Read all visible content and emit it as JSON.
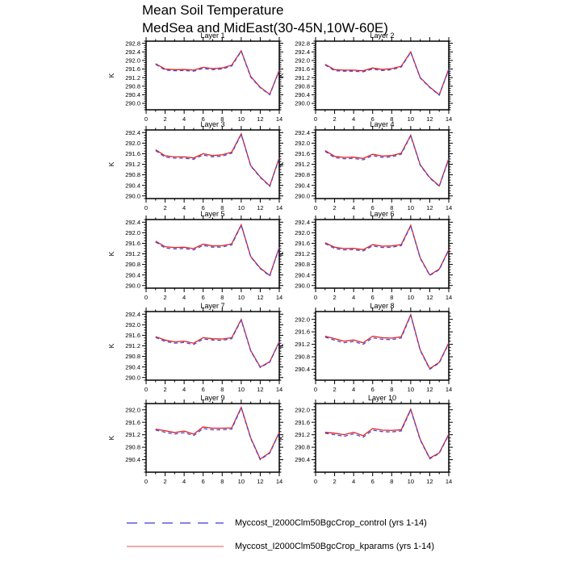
{
  "title": {
    "line1": "Mean Soil Temperature",
    "line2": "MedSea and MidEast(30-45N,10W-60E)"
  },
  "legend": {
    "entries": [
      {
        "label": "Myccost_I2000Clm50BgcCrop_control (yrs 1-14)",
        "style": "dashed",
        "color": "#5b5bdb"
      },
      {
        "label": "Myccost_I2000Clm50BgcCrop_kparams (yrs 1-14)",
        "style": "solid",
        "color": "#e87a72"
      }
    ]
  },
  "chart_data": {
    "type": "line",
    "x": [
      1,
      2,
      3,
      4,
      5,
      6,
      7,
      8,
      9,
      10,
      11,
      12,
      13,
      14
    ],
    "xlim": [
      0,
      14
    ],
    "xticks_major": [
      0,
      2,
      4,
      6,
      8,
      10,
      12,
      14
    ],
    "xticks_minor": [
      1,
      3,
      5,
      7,
      9,
      11,
      13
    ],
    "ylabel": "K",
    "grid": false,
    "legend_position": "bottom",
    "series_names": [
      "Myccost_I2000Clm50BgcCrop_control (yrs 1-14)",
      "Myccost_I2000Clm50BgcCrop_kparams (yrs 1-14)"
    ],
    "control_color": "#4a4ad6",
    "kparams_color": "#e62020",
    "panels": [
      {
        "title": "Layer 1",
        "ylim": [
          289.7,
          292.9
        ],
        "yticks": [
          290.0,
          290.4,
          290.8,
          291.2,
          291.6,
          292.0,
          292.4,
          292.8
        ],
        "control": [
          291.82,
          291.55,
          291.52,
          291.53,
          291.5,
          291.63,
          291.57,
          291.6,
          291.74,
          292.43,
          291.22,
          290.73,
          290.4,
          291.53
        ],
        "kparams": [
          291.85,
          291.6,
          291.57,
          291.58,
          291.55,
          291.68,
          291.62,
          291.65,
          291.78,
          292.45,
          291.25,
          290.75,
          290.42,
          291.55
        ]
      },
      {
        "title": "Layer 2",
        "ylim": [
          289.7,
          292.9
        ],
        "yticks": [
          290.0,
          290.4,
          290.8,
          291.2,
          291.6,
          292.0,
          292.4,
          292.8
        ],
        "control": [
          291.79,
          291.52,
          291.5,
          291.5,
          291.47,
          291.6,
          291.53,
          291.57,
          291.69,
          292.38,
          291.18,
          290.74,
          290.38,
          291.58
        ],
        "kparams": [
          291.82,
          291.57,
          291.55,
          291.55,
          291.52,
          291.65,
          291.58,
          291.62,
          291.73,
          292.4,
          291.2,
          290.76,
          290.4,
          291.6
        ]
      },
      {
        "title": "Layer 3",
        "ylim": [
          289.9,
          292.5
        ],
        "yticks": [
          290.0,
          290.4,
          290.8,
          291.2,
          291.6,
          292.0,
          292.4
        ],
        "control": [
          291.72,
          291.47,
          291.43,
          291.43,
          291.39,
          291.55,
          291.48,
          291.51,
          291.62,
          292.33,
          291.13,
          290.7,
          290.36,
          291.43
        ],
        "kparams": [
          291.75,
          291.52,
          291.48,
          291.48,
          291.44,
          291.6,
          291.53,
          291.56,
          291.66,
          292.35,
          291.15,
          290.72,
          290.38,
          291.45
        ]
      },
      {
        "title": "Layer 4",
        "ylim": [
          289.9,
          292.5
        ],
        "yticks": [
          290.0,
          290.4,
          290.8,
          291.2,
          291.6,
          292.0,
          292.4
        ],
        "control": [
          291.69,
          291.45,
          291.41,
          291.42,
          291.37,
          291.53,
          291.46,
          291.48,
          291.58,
          292.28,
          291.16,
          290.68,
          290.36,
          291.4
        ],
        "kparams": [
          291.72,
          291.5,
          291.46,
          291.47,
          291.42,
          291.58,
          291.51,
          291.53,
          291.62,
          292.3,
          291.18,
          290.7,
          290.38,
          291.42
        ]
      },
      {
        "title": "Layer 5",
        "ylim": [
          289.9,
          292.5
        ],
        "yticks": [
          290.0,
          290.4,
          290.8,
          291.2,
          291.6,
          292.0,
          292.4
        ],
        "control": [
          291.65,
          291.42,
          291.39,
          291.4,
          291.35,
          291.52,
          291.45,
          291.46,
          291.54,
          292.28,
          291.08,
          290.64,
          290.36,
          291.43
        ],
        "kparams": [
          291.68,
          291.47,
          291.44,
          291.45,
          291.4,
          291.57,
          291.5,
          291.51,
          291.58,
          292.3,
          291.1,
          290.66,
          290.38,
          291.45
        ]
      },
      {
        "title": "Layer 6",
        "ylim": [
          289.9,
          292.5
        ],
        "yticks": [
          290.0,
          290.4,
          290.8,
          291.2,
          291.6,
          292.0,
          292.4
        ],
        "control": [
          291.59,
          291.4,
          291.35,
          291.36,
          291.31,
          291.5,
          291.44,
          291.45,
          291.51,
          292.26,
          291.03,
          290.38,
          290.6,
          291.34
        ],
        "kparams": [
          291.62,
          291.45,
          291.4,
          291.41,
          291.36,
          291.55,
          291.49,
          291.5,
          291.55,
          292.28,
          291.05,
          290.4,
          290.62,
          291.36
        ]
      },
      {
        "title": "Layer 7",
        "ylim": [
          289.9,
          292.5
        ],
        "yticks": [
          290.0,
          290.4,
          290.8,
          291.2,
          291.6,
          292.0,
          292.4
        ],
        "control": [
          291.52,
          291.37,
          291.3,
          291.33,
          291.25,
          291.46,
          291.42,
          291.41,
          291.47,
          292.18,
          291.0,
          290.38,
          290.58,
          291.34
        ],
        "kparams": [
          291.55,
          291.42,
          291.35,
          291.38,
          291.3,
          291.51,
          291.47,
          291.46,
          291.51,
          292.2,
          291.02,
          290.4,
          290.6,
          291.36
        ]
      },
      {
        "title": "Layer 8",
        "ylim": [
          290.05,
          292.25
        ],
        "yticks": [
          290.4,
          290.8,
          291.2,
          291.6,
          292.0
        ],
        "control": [
          291.43,
          291.33,
          291.25,
          291.29,
          291.2,
          291.41,
          291.36,
          291.35,
          291.4,
          292.13,
          291.0,
          290.4,
          290.6,
          291.23
        ],
        "kparams": [
          291.46,
          291.38,
          291.3,
          291.34,
          291.25,
          291.46,
          291.41,
          291.4,
          291.44,
          292.15,
          291.02,
          290.42,
          290.62,
          291.25
        ]
      },
      {
        "title": "Layer 9",
        "ylim": [
          290.0,
          292.2
        ],
        "yticks": [
          290.4,
          290.8,
          291.2,
          291.6,
          292.0
        ],
        "control": [
          291.35,
          291.28,
          291.22,
          291.27,
          291.17,
          291.4,
          291.36,
          291.36,
          291.38,
          292.06,
          291.08,
          290.4,
          290.61,
          291.26
        ],
        "kparams": [
          291.38,
          291.33,
          291.27,
          291.32,
          291.22,
          291.45,
          291.41,
          291.41,
          291.42,
          292.08,
          291.1,
          290.42,
          290.63,
          291.28
        ]
      },
      {
        "title": "Layer 10",
        "ylim": [
          290.0,
          292.2
        ],
        "yticks": [
          290.4,
          290.8,
          291.2,
          291.6,
          292.0
        ],
        "control": [
          291.25,
          291.2,
          291.15,
          291.23,
          291.12,
          291.35,
          291.3,
          291.29,
          291.32,
          292.0,
          291.03,
          290.43,
          290.6,
          291.2
        ],
        "kparams": [
          291.28,
          291.25,
          291.2,
          291.28,
          291.17,
          291.4,
          291.35,
          291.34,
          291.36,
          292.02,
          291.05,
          290.45,
          290.62,
          291.22
        ]
      }
    ]
  }
}
